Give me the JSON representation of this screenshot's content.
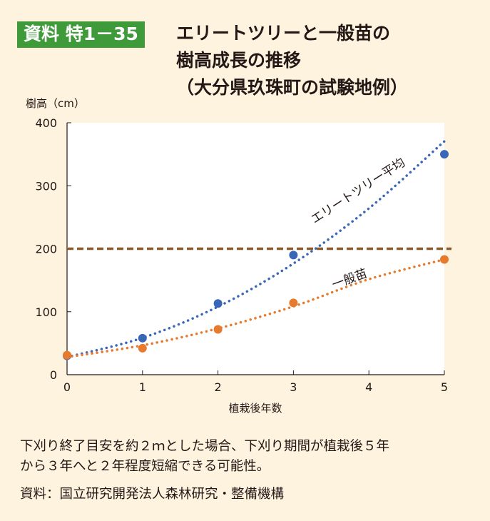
{
  "figure": {
    "badge": "資料 特1－35",
    "title_lines": [
      "エリートツリーと一般苗の",
      "樹高成長の推移",
      "（大分県玖珠町の試験地例）"
    ],
    "note_lines": [
      "下刈り終了目安を約２ｍとした場合、下刈り期間が植栽後５年",
      "から３年へと２年程度短縮できる可能性。"
    ],
    "source": "資料：国立研究開発法人森林研究・整備機構"
  },
  "chart_data": {
    "type": "scatter",
    "title": "エリートツリーと一般苗の樹高成長の推移",
    "xlabel": "植栽後年数",
    "ylabel": "樹高（cm）",
    "xlim": [
      0,
      5
    ],
    "ylim": [
      0,
      400
    ],
    "xticks": [
      "0",
      "1",
      "2",
      "3",
      "4",
      "5"
    ],
    "yticks": [
      "0",
      "100",
      "200",
      "300",
      "400"
    ],
    "grid": false,
    "reference_line": {
      "y": 200
    },
    "series": [
      {
        "name": "エリートツリー平均",
        "color": "#3a66b8",
        "x": [
          0,
          1,
          2,
          3,
          5
        ],
        "y": [
          30,
          58,
          113,
          190,
          350
        ],
        "trend": [
          28,
          58.5,
          108,
          176.5,
          264,
          370.5
        ]
      },
      {
        "name": "一般苗",
        "color": "#e67a2d",
        "x": [
          0,
          1,
          2,
          3,
          5
        ],
        "y": [
          31,
          42,
          72,
          114,
          183
        ],
        "trend": [
          28,
          46.6,
          73.4,
          108.4,
          151.6,
          183
        ]
      }
    ]
  }
}
